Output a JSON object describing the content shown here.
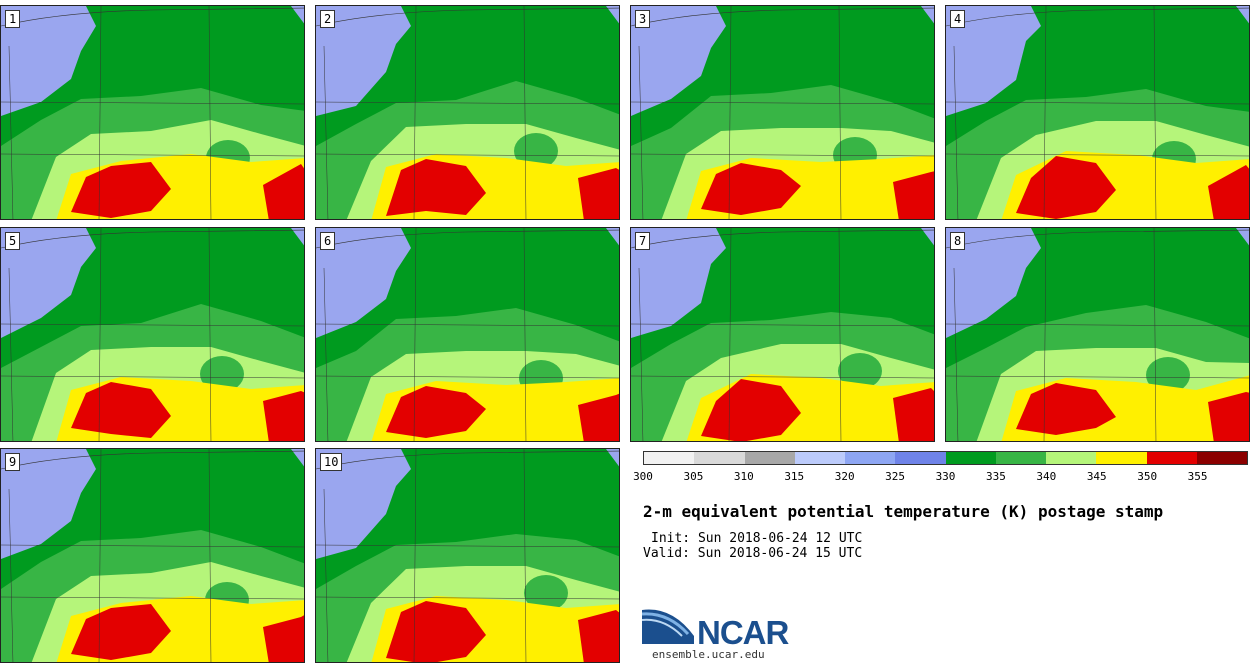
{
  "panels": [
    {
      "label": "1"
    },
    {
      "label": "2"
    },
    {
      "label": "3"
    },
    {
      "label": "4"
    },
    {
      "label": "5"
    },
    {
      "label": "6"
    },
    {
      "label": "7"
    },
    {
      "label": "8"
    },
    {
      "label": "9"
    },
    {
      "label": "10"
    }
  ],
  "colorbar": {
    "bins": [
      {
        "min": 300,
        "max": 305,
        "color": "#f2f2f2"
      },
      {
        "min": 305,
        "max": 310,
        "color": "#d9d9d9"
      },
      {
        "min": 310,
        "max": 315,
        "color": "#a8a8a8"
      },
      {
        "min": 315,
        "max": 320,
        "color": "#bccbfb"
      },
      {
        "min": 320,
        "max": 325,
        "color": "#8ea6f3"
      },
      {
        "min": 325,
        "max": 330,
        "color": "#6f83e8"
      },
      {
        "min": 330,
        "max": 335,
        "color": "#009b1f"
      },
      {
        "min": 335,
        "max": 340,
        "color": "#38b545"
      },
      {
        "min": 340,
        "max": 345,
        "color": "#b5f57a"
      },
      {
        "min": 345,
        "max": 350,
        "color": "#fff000"
      },
      {
        "min": 350,
        "max": 355,
        "color": "#e30000"
      },
      {
        "min": 355,
        "max": 360,
        "color": "#8b0000"
      }
    ],
    "tick_labels": [
      "300",
      "305",
      "310",
      "315",
      "320",
      "325",
      "330",
      "335",
      "340",
      "345",
      "350",
      "355"
    ]
  },
  "title": "2-m equivalent potential temperature (K) postage stamp",
  "init": "Init: Sun 2018-06-24 12 UTC",
  "valid": "Valid: Sun 2018-06-24 15 UTC",
  "logo_text": "NCAR",
  "site": "ensemble.ucar.edu",
  "colors": {
    "blue_region": "#9aa6ef",
    "dark_green": "#009b1f",
    "green": "#38b545",
    "light_green": "#b5f57a",
    "yellow": "#fff000",
    "red": "#e30000"
  }
}
